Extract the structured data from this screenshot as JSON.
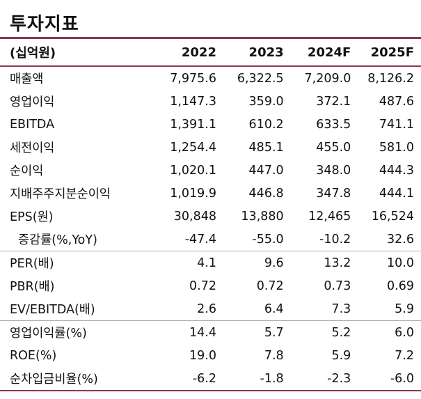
{
  "title": "투자지표",
  "header": {
    "label": "(십억원)",
    "years": [
      "2022",
      "2023",
      "2024F",
      "2025F"
    ]
  },
  "rows": [
    {
      "label": "매출액",
      "values": [
        "7,975.6",
        "6,322.5",
        "7,209.0",
        "8,126.2"
      ]
    },
    {
      "label": "영업이익",
      "values": [
        "1,147.3",
        "359.0",
        "372.1",
        "487.6"
      ]
    },
    {
      "label": "EBITDA",
      "values": [
        "1,391.1",
        "610.2",
        "633.5",
        "741.1"
      ]
    },
    {
      "label": "세전이익",
      "values": [
        "1,254.4",
        "485.1",
        "455.0",
        "581.0"
      ]
    },
    {
      "label": "순이익",
      "values": [
        "1,020.1",
        "447.0",
        "348.0",
        "444.3"
      ]
    },
    {
      "label": "지배주주지분순이익",
      "values": [
        "1,019.9",
        "446.8",
        "347.8",
        "444.1"
      ]
    },
    {
      "label": "EPS(원)",
      "values": [
        "30,848",
        "13,880",
        "12,465",
        "16,524"
      ]
    },
    {
      "label": "증감률(%,YoY)",
      "values": [
        "-47.4",
        "-55.0",
        "-10.2",
        "32.6"
      ]
    },
    {
      "label": "PER(배)",
      "values": [
        "4.1",
        "9.6",
        "13.2",
        "10.0"
      ]
    },
    {
      "label": "PBR(배)",
      "values": [
        "0.72",
        "0.72",
        "0.73",
        "0.69"
      ]
    },
    {
      "label": "EV/EBITDA(배)",
      "values": [
        "2.6",
        "6.4",
        "7.3",
        "5.9"
      ]
    },
    {
      "label": "영업이익률(%)",
      "values": [
        "14.4",
        "5.7",
        "5.2",
        "6.0"
      ]
    },
    {
      "label": "ROE(%)",
      "values": [
        "19.0",
        "7.8",
        "5.9",
        "7.2"
      ]
    },
    {
      "label": "순차입금비율(%)",
      "values": [
        "-6.2",
        "-1.8",
        "-2.3",
        "-6.0"
      ]
    }
  ]
}
